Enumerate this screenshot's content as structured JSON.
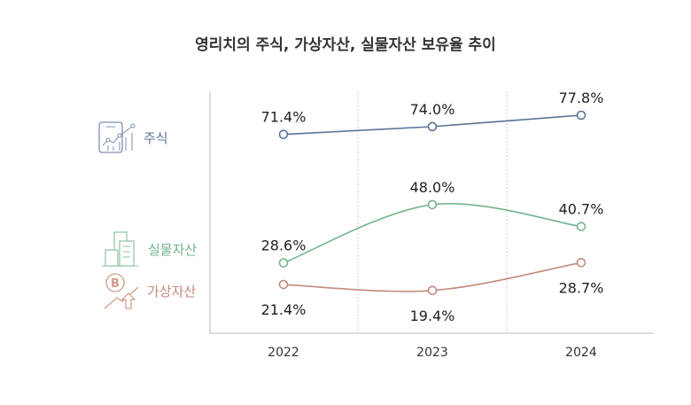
{
  "chart_data": {
    "type": "line",
    "title": "영리치의 주식, 가상자산, 실물자산 보유율 추이",
    "categories": [
      "2022",
      "2023",
      "2024"
    ],
    "ylim": [
      5,
      86
    ],
    "grid": "vertical dashed",
    "legend_position": "left",
    "series": [
      {
        "name": "주식",
        "values": [
          71.4,
          74.0,
          77.8
        ],
        "labels": [
          "71.4%",
          "74.0%",
          "77.8%"
        ],
        "color": "#5b7397",
        "icon": "stock-chart-phone-icon",
        "label_side": "above"
      },
      {
        "name": "실물자산",
        "values": [
          28.6,
          48.0,
          40.7
        ],
        "labels": [
          "28.6%",
          "48.0%",
          "40.7%"
        ],
        "color": "#72b48c",
        "icon": "buildings-icon",
        "label_side": "above"
      },
      {
        "name": "가상자산",
        "values": [
          21.4,
          19.4,
          28.7
        ],
        "labels": [
          "21.4%",
          "19.4%",
          "28.7%"
        ],
        "color": "#c38a7c",
        "icon": "bitcoin-icon",
        "label_side": "below"
      }
    ]
  }
}
